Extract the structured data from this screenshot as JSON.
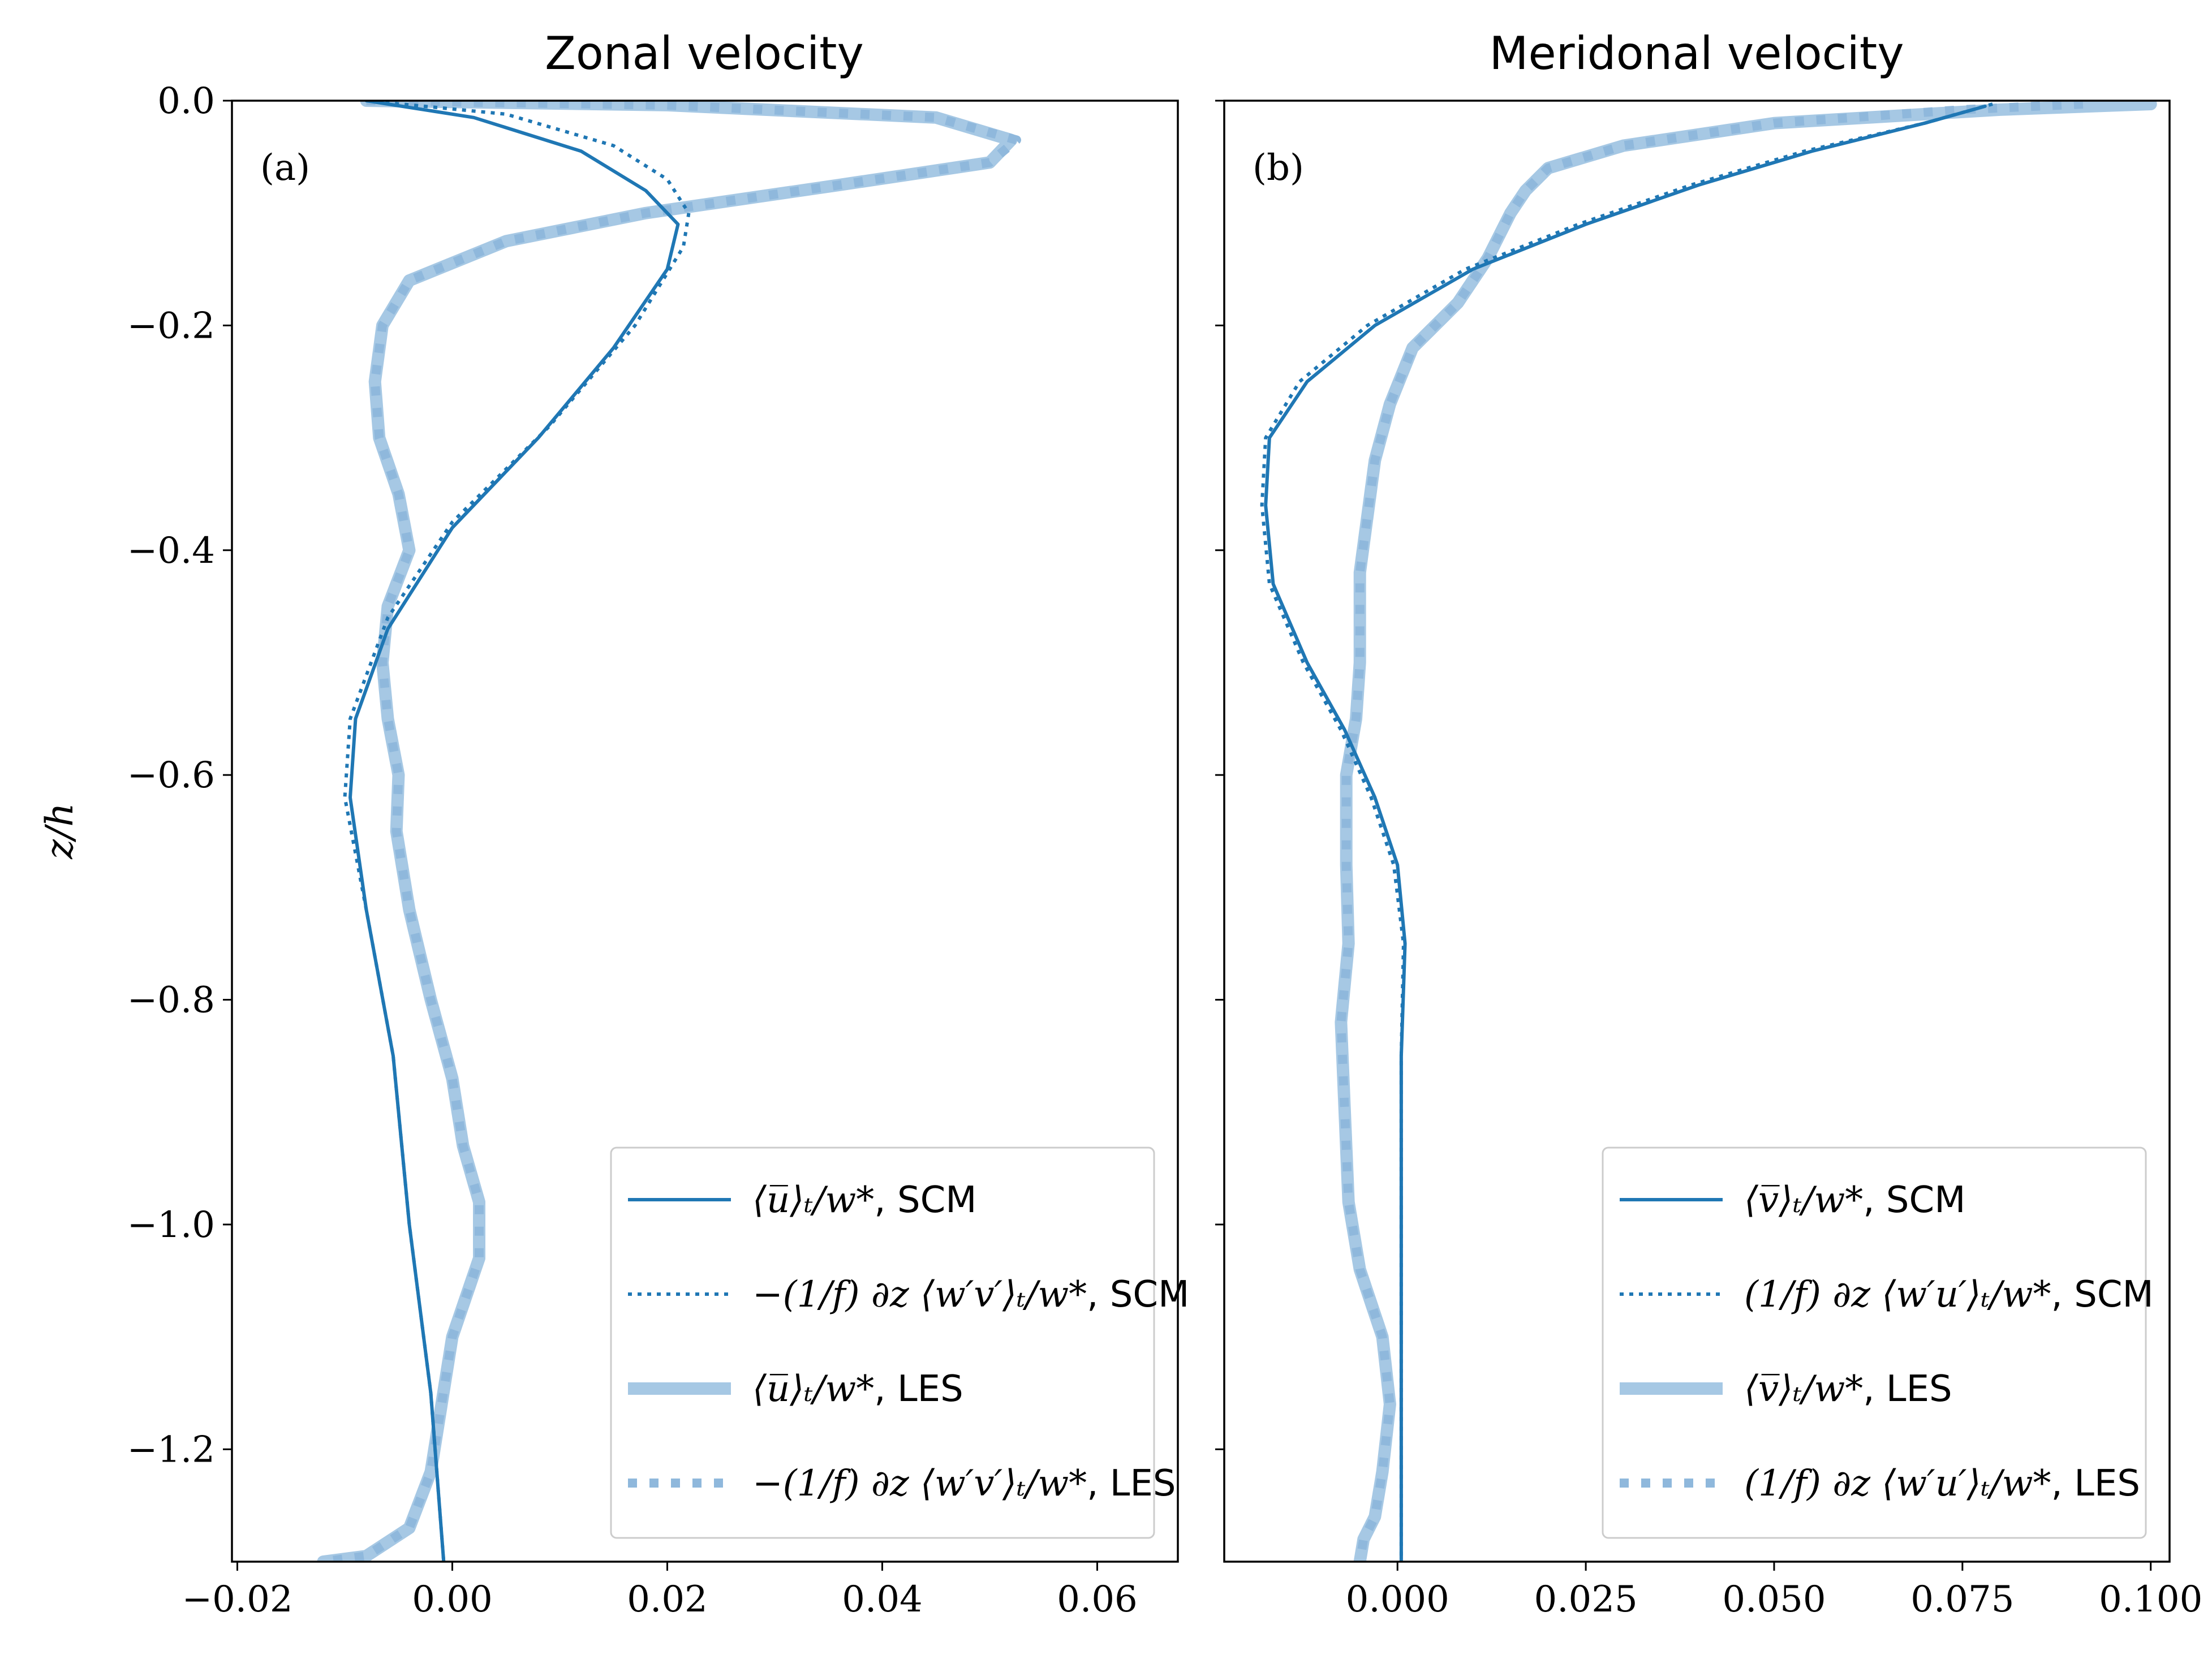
{
  "chart_data": [
    {
      "type": "line",
      "title": "Zonal velocity",
      "panel_label": "(a)",
      "ylabel": "z/h",
      "xlim": [
        -0.0205,
        0.0675
      ],
      "ylim": [
        -1.3,
        0.0
      ],
      "xticks": [
        -0.02,
        0.0,
        0.02,
        0.04,
        0.06
      ],
      "xtick_labels": [
        "−0.02",
        "0.00",
        "0.02",
        "0.04",
        "0.06"
      ],
      "yticks": [
        0.0,
        -0.2,
        -0.4,
        -0.6,
        -0.8,
        -1.0,
        -1.2
      ],
      "ytick_labels": [
        "0.0",
        "−0.2",
        "−0.4",
        "−0.6",
        "−0.8",
        "−1.0",
        "−1.2"
      ],
      "legend_position": "lower-right",
      "series": [
        {
          "name": "⟨u̅⟩t / w*, SCM",
          "label_math": "⟨u̅⟩ₜ/w*",
          "label_suffix": ", SCM",
          "style": "solid-dark",
          "points": [
            [
              -0.008,
              0.0
            ],
            [
              0.002,
              -0.015
            ],
            [
              0.012,
              -0.045
            ],
            [
              0.018,
              -0.08
            ],
            [
              0.021,
              -0.11
            ],
            [
              0.02,
              -0.15
            ],
            [
              0.015,
              -0.22
            ],
            [
              0.008,
              -0.3
            ],
            [
              0.0,
              -0.38
            ],
            [
              -0.006,
              -0.47
            ],
            [
              -0.009,
              -0.55
            ],
            [
              -0.0095,
              -0.62
            ],
            [
              -0.008,
              -0.72
            ],
            [
              -0.0055,
              -0.85
            ],
            [
              -0.004,
              -1.0
            ],
            [
              -0.002,
              -1.15
            ],
            [
              -0.0008,
              -1.3
            ]
          ]
        },
        {
          "name": "−(1/f) ∂z ⟨w′v′⟩t / w*, SCM",
          "label_math": "−(1/f) ∂z ⟨w′v′⟩ₜ/w*",
          "label_suffix": ", SCM",
          "style": "dotted-dark",
          "points": [
            [
              -0.008,
              0.0
            ],
            [
              0.005,
              -0.012
            ],
            [
              0.015,
              -0.04
            ],
            [
              0.02,
              -0.07
            ],
            [
              0.022,
              -0.1
            ],
            [
              0.0215,
              -0.13
            ],
            [
              0.017,
              -0.2
            ],
            [
              0.009,
              -0.29
            ],
            [
              0.0,
              -0.375
            ],
            [
              -0.006,
              -0.46
            ],
            [
              -0.0095,
              -0.55
            ],
            [
              -0.01,
              -0.62
            ],
            [
              -0.008,
              -0.72
            ],
            [
              -0.0055,
              -0.85
            ],
            [
              -0.004,
              -1.0
            ],
            [
              -0.002,
              -1.15
            ],
            [
              -0.0008,
              -1.3
            ]
          ]
        },
        {
          "name": "⟨u̅⟩t / w*, LES",
          "label_math": "⟨u̅⟩ₜ/w*",
          "label_suffix": ", LES",
          "style": "solid-light",
          "points": [
            [
              -0.008,
              0.0
            ],
            [
              0.02,
              -0.004
            ],
            [
              0.045,
              -0.015
            ],
            [
              0.052,
              -0.035
            ],
            [
              0.05,
              -0.055
            ],
            [
              0.036,
              -0.075
            ],
            [
              0.018,
              -0.1
            ],
            [
              0.005,
              -0.125
            ],
            [
              -0.004,
              -0.16
            ],
            [
              -0.0065,
              -0.2
            ],
            [
              -0.0072,
              -0.25
            ],
            [
              -0.0068,
              -0.3
            ],
            [
              -0.005,
              -0.35
            ],
            [
              -0.004,
              -0.4
            ],
            [
              -0.006,
              -0.45
            ],
            [
              -0.0065,
              -0.5
            ],
            [
              -0.006,
              -0.55
            ],
            [
              -0.005,
              -0.6
            ],
            [
              -0.0052,
              -0.65
            ],
            [
              -0.004,
              -0.72
            ],
            [
              -0.002,
              -0.8
            ],
            [
              0.0,
              -0.87
            ],
            [
              0.001,
              -0.93
            ],
            [
              0.0025,
              -0.98
            ],
            [
              0.0025,
              -1.03
            ],
            [
              0.0,
              -1.1
            ],
            [
              -0.001,
              -1.16
            ],
            [
              -0.002,
              -1.22
            ],
            [
              -0.004,
              -1.27
            ],
            [
              -0.008,
              -1.295
            ],
            [
              -0.012,
              -1.3
            ]
          ]
        },
        {
          "name": "−(1/f) ∂z ⟨w′v′⟩t / w*, LES",
          "label_math": "−(1/f) ∂z ⟨w′v′⟩ₜ/w*",
          "label_suffix": ", LES",
          "style": "dotted-light",
          "points": [
            [
              -0.008,
              0.0
            ],
            [
              0.02,
              -0.004
            ],
            [
              0.045,
              -0.015
            ],
            [
              0.0525,
              -0.035
            ],
            [
              0.05,
              -0.055
            ],
            [
              0.036,
              -0.075
            ],
            [
              0.018,
              -0.1
            ],
            [
              0.005,
              -0.125
            ],
            [
              -0.004,
              -0.16
            ],
            [
              -0.0065,
              -0.2
            ],
            [
              -0.0072,
              -0.25
            ],
            [
              -0.0068,
              -0.3
            ],
            [
              -0.005,
              -0.35
            ],
            [
              -0.004,
              -0.4
            ],
            [
              -0.006,
              -0.45
            ],
            [
              -0.0065,
              -0.5
            ],
            [
              -0.006,
              -0.55
            ],
            [
              -0.005,
              -0.6
            ],
            [
              -0.0052,
              -0.65
            ],
            [
              -0.004,
              -0.72
            ],
            [
              -0.002,
              -0.8
            ],
            [
              0.0,
              -0.87
            ],
            [
              0.001,
              -0.93
            ],
            [
              0.0025,
              -0.98
            ],
            [
              0.0025,
              -1.03
            ],
            [
              0.0,
              -1.1
            ],
            [
              -0.001,
              -1.16
            ],
            [
              -0.002,
              -1.22
            ],
            [
              -0.004,
              -1.27
            ],
            [
              -0.008,
              -1.295
            ],
            [
              -0.012,
              -1.3
            ]
          ]
        }
      ]
    },
    {
      "type": "line",
      "title": "Meridonal velocity",
      "panel_label": "(b)",
      "ylabel": "",
      "xlim": [
        -0.023,
        0.1025
      ],
      "ylim": [
        -1.3,
        0.0
      ],
      "xticks": [
        0.0,
        0.025,
        0.05,
        0.075,
        0.1
      ],
      "xtick_labels": [
        "0.000",
        "0.025",
        "0.050",
        "0.075",
        "0.100"
      ],
      "yticks": [
        0.0,
        -0.2,
        -0.4,
        -0.6,
        -0.8,
        -1.0,
        -1.2
      ],
      "ytick_labels": [],
      "legend_position": "lower-right",
      "series": [
        {
          "name": "⟨v̅⟩t / w*, SCM",
          "label_math": "⟨v̅⟩ₜ/w*",
          "label_suffix": ", SCM",
          "style": "solid-dark",
          "points": [
            [
              0.078,
              -0.005
            ],
            [
              0.07,
              -0.02
            ],
            [
              0.055,
              -0.045
            ],
            [
              0.04,
              -0.075
            ],
            [
              0.025,
              -0.11
            ],
            [
              0.01,
              -0.15
            ],
            [
              -0.003,
              -0.2
            ],
            [
              -0.012,
              -0.25
            ],
            [
              -0.017,
              -0.3
            ],
            [
              -0.0175,
              -0.36
            ],
            [
              -0.0165,
              -0.43
            ],
            [
              -0.012,
              -0.5
            ],
            [
              -0.007,
              -0.56
            ],
            [
              -0.003,
              -0.62
            ],
            [
              0.0,
              -0.68
            ],
            [
              0.001,
              -0.75
            ],
            [
              0.0005,
              -0.85
            ],
            [
              0.0005,
              -1.0
            ],
            [
              0.0005,
              -1.15
            ],
            [
              0.0005,
              -1.3
            ]
          ]
        },
        {
          "name": "(1/f) ∂z ⟨w′u′⟩t / w*, SCM",
          "label_math": "(1/f) ∂z ⟨w′u′⟩ₜ/w*",
          "label_suffix": ", SCM",
          "style": "dotted-dark",
          "points": [
            [
              0.079,
              -0.003
            ],
            [
              0.07,
              -0.02
            ],
            [
              0.054,
              -0.045
            ],
            [
              0.039,
              -0.075
            ],
            [
              0.024,
              -0.11
            ],
            [
              0.009,
              -0.15
            ],
            [
              -0.004,
              -0.2
            ],
            [
              -0.013,
              -0.25
            ],
            [
              -0.0175,
              -0.3
            ],
            [
              -0.018,
              -0.36
            ],
            [
              -0.017,
              -0.43
            ],
            [
              -0.0125,
              -0.5
            ],
            [
              -0.0075,
              -0.56
            ],
            [
              -0.0035,
              -0.62
            ],
            [
              -0.0005,
              -0.68
            ],
            [
              0.0008,
              -0.75
            ],
            [
              0.0005,
              -0.85
            ],
            [
              0.0005,
              -1.0
            ],
            [
              0.0005,
              -1.15
            ],
            [
              0.0005,
              -1.3
            ]
          ]
        },
        {
          "name": "⟨v̅⟩t / w*, LES",
          "label_math": "⟨v̅⟩ₜ/w*",
          "label_suffix": ", LES",
          "style": "solid-light",
          "points": [
            [
              0.1,
              -0.003
            ],
            [
              0.08,
              -0.008
            ],
            [
              0.05,
              -0.02
            ],
            [
              0.03,
              -0.04
            ],
            [
              0.02,
              -0.06
            ],
            [
              0.017,
              -0.08
            ],
            [
              0.015,
              -0.1
            ],
            [
              0.012,
              -0.14
            ],
            [
              0.008,
              -0.18
            ],
            [
              0.002,
              -0.22
            ],
            [
              -0.001,
              -0.27
            ],
            [
              -0.003,
              -0.32
            ],
            [
              -0.004,
              -0.37
            ],
            [
              -0.005,
              -0.42
            ],
            [
              -0.005,
              -0.5
            ],
            [
              -0.0055,
              -0.55
            ],
            [
              -0.0068,
              -0.6
            ],
            [
              -0.0068,
              -0.68
            ],
            [
              -0.0065,
              -0.75
            ],
            [
              -0.0075,
              -0.82
            ],
            [
              -0.007,
              -0.9
            ],
            [
              -0.0065,
              -0.98
            ],
            [
              -0.005,
              -1.04
            ],
            [
              -0.002,
              -1.1
            ],
            [
              -0.001,
              -1.16
            ],
            [
              -0.002,
              -1.22
            ],
            [
              -0.003,
              -1.26
            ],
            [
              -0.0045,
              -1.28
            ],
            [
              -0.005,
              -1.3
            ]
          ]
        },
        {
          "name": "(1/f) ∂z ⟨w′u′⟩t / w*, LES",
          "label_math": "(1/f) ∂z ⟨w′u′⟩ₜ/w*",
          "label_suffix": ", LES",
          "style": "dotted-light",
          "points": [
            [
              0.091,
              -0.003
            ],
            [
              0.075,
              -0.008
            ],
            [
              0.05,
              -0.02
            ],
            [
              0.03,
              -0.04
            ],
            [
              0.02,
              -0.06
            ],
            [
              0.017,
              -0.08
            ],
            [
              0.015,
              -0.1
            ],
            [
              0.012,
              -0.14
            ],
            [
              0.008,
              -0.18
            ],
            [
              0.002,
              -0.22
            ],
            [
              -0.001,
              -0.27
            ],
            [
              -0.003,
              -0.32
            ],
            [
              -0.004,
              -0.37
            ],
            [
              -0.005,
              -0.42
            ],
            [
              -0.005,
              -0.5
            ],
            [
              -0.0055,
              -0.55
            ],
            [
              -0.0068,
              -0.6
            ],
            [
              -0.0068,
              -0.68
            ],
            [
              -0.0065,
              -0.75
            ],
            [
              -0.0075,
              -0.82
            ],
            [
              -0.007,
              -0.9
            ],
            [
              -0.0065,
              -0.98
            ],
            [
              -0.005,
              -1.04
            ],
            [
              -0.002,
              -1.1
            ],
            [
              -0.001,
              -1.16
            ],
            [
              -0.002,
              -1.22
            ],
            [
              -0.003,
              -1.26
            ],
            [
              -0.0045,
              -1.28
            ],
            [
              -0.005,
              -1.3
            ]
          ]
        }
      ]
    }
  ],
  "colors": {
    "dark": "#1f77b4",
    "light": "#a6c8e4",
    "axis": "#000000",
    "legend_border": "#cccccc"
  }
}
